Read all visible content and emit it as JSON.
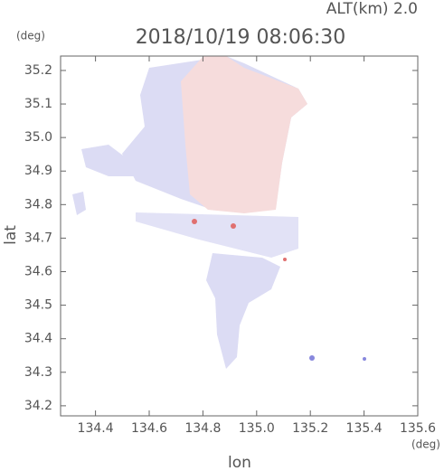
{
  "chart_data": {
    "type": "map",
    "title": "2018/10/19 08:06:30",
    "subtitle": "ALT(km) 2.0",
    "x_label": "lon",
    "y_label": "lat",
    "x_unit": "(deg)",
    "y_unit": "(deg)",
    "xlim": [
      134.27,
      135.6
    ],
    "ylim": [
      34.17,
      35.243
    ],
    "xticks": [
      134.4,
      134.6,
      134.8,
      {
        "value": 135,
        "label": "135.0"
      },
      135.2,
      135.4,
      135.6
    ],
    "yticks": [
      34.2,
      34.3,
      34.4,
      34.5,
      34.6,
      34.7,
      34.8,
      34.9,
      {
        "value": 35,
        "label": "35.0"
      },
      35.1,
      35.2
    ]
  }
}
